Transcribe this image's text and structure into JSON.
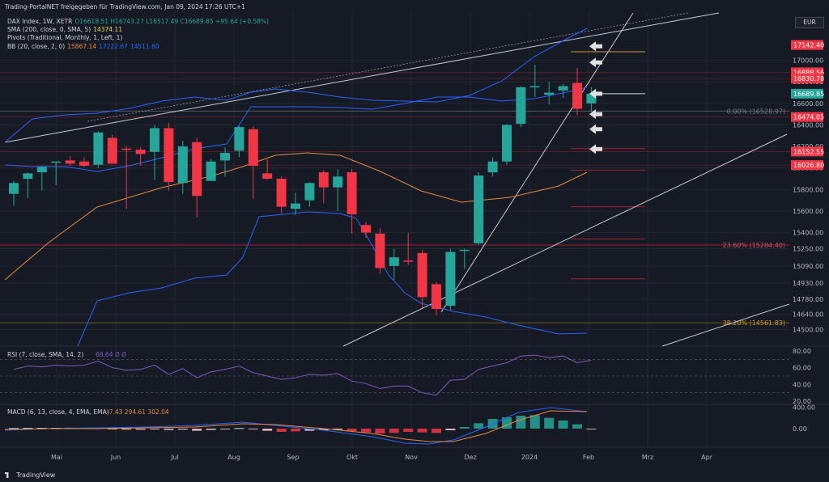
{
  "header": {
    "text": "Trading-PortalNET freigegeben für TradingView.com, Jan 09, 2024 17:26 UTC+1"
  },
  "legend": {
    "symbol": "DAX Index, 1W, XETR",
    "ohlc": "O16618.51  H16743.27  L16517.49  C16689.85  +95.64 (+0.58%)",
    "sma_label": "SMA (200, close, 0, SMA, 5)",
    "sma_value": "14374.11",
    "pivots_label": "Pivots (Traditional, Monthly, 1, Left, 1)",
    "bb_label": "BB (20, close, 2, 0)",
    "bb_v1": "15867.14",
    "bb_v2": "17222.67",
    "bb_v3": "14511.60"
  },
  "currency": "EUR",
  "footer": {
    "brand": "TradingView"
  },
  "colors": {
    "up": "#26a69a",
    "down": "#f23645",
    "bb": "#2962ff",
    "sma": "#e68a3c",
    "bg": "#161a25",
    "grid": "#232732",
    "pivot": "#a8202c",
    "fib": "#8c6a1a"
  },
  "chart_data": [
    {
      "type": "candlestick",
      "title": "DAX Index, 1W, XETR",
      "ylim": [
        14420,
        17260
      ],
      "price_ticks": [
        "17000.00",
        "16800.00",
        "16600.00",
        "16400.00",
        "16200.00",
        "16000.00",
        "15800.00",
        "15600.00",
        "15400.00",
        "15250.00",
        "15090.00",
        "14930.00",
        "14780.00",
        "14640.00",
        "14500.00"
      ],
      "time_labels": [
        "Mai",
        "Jun",
        "Jul",
        "Aug",
        "Sep",
        "Okt",
        "Nov",
        "Dez",
        "2024",
        "Feb",
        "Mrz",
        "Apr"
      ],
      "price_labels": [
        {
          "value": 17142.4,
          "text": "17142.40",
          "color": "#f23645"
        },
        {
          "value": 16888.56,
          "text": "16888.56",
          "color": "#f23645"
        },
        {
          "value": 16830.78,
          "text": "16830.78",
          "color": "#f23645"
        },
        {
          "value": 16689.85,
          "text": "16689.85",
          "color": "#26a69a"
        },
        {
          "value": 16474.05,
          "text": "16474.05",
          "color": "#f23645"
        },
        {
          "value": 16152.55,
          "text": "16152.55",
          "color": "#f23645"
        },
        {
          "value": 16026.8,
          "text": "16026.80",
          "color": "#f23645"
        }
      ],
      "fib_levels": [
        {
          "value": 16528.97,
          "text": "0.00% (16528.97)"
        },
        {
          "value": 15284.4,
          "text": "23.60% (15284.40)"
        },
        {
          "value": 14561.83,
          "text": "38.20% (14561.83)"
        }
      ],
      "candles": [
        {
          "o": 15760,
          "h": 15880,
          "l": 15650,
          "c": 15860
        },
        {
          "o": 15900,
          "h": 15960,
          "l": 15720,
          "c": 15950
        },
        {
          "o": 15960,
          "h": 16020,
          "l": 15790,
          "c": 16010
        },
        {
          "o": 16050,
          "h": 16060,
          "l": 15840,
          "c": 16060
        },
        {
          "o": 16070,
          "h": 16110,
          "l": 16020,
          "c": 16040
        },
        {
          "o": 16060,
          "h": 16100,
          "l": 16010,
          "c": 16020
        },
        {
          "o": 16030,
          "h": 16340,
          "l": 16000,
          "c": 16330
        },
        {
          "o": 16280,
          "h": 16310,
          "l": 16050,
          "c": 16040
        },
        {
          "o": 16180,
          "h": 16200,
          "l": 15620,
          "c": 16170
        },
        {
          "o": 16170,
          "h": 16190,
          "l": 16020,
          "c": 16130
        },
        {
          "o": 16150,
          "h": 16400,
          "l": 15890,
          "c": 16370
        },
        {
          "o": 16370,
          "h": 16420,
          "l": 15790,
          "c": 15870
        },
        {
          "o": 15860,
          "h": 16250,
          "l": 15760,
          "c": 16200
        },
        {
          "o": 16240,
          "h": 16280,
          "l": 15540,
          "c": 15740
        },
        {
          "o": 15880,
          "h": 16080,
          "l": 15890,
          "c": 16060
        },
        {
          "o": 16070,
          "h": 16190,
          "l": 15920,
          "c": 16140
        },
        {
          "o": 16160,
          "h": 16390,
          "l": 16100,
          "c": 16380
        },
        {
          "o": 16360,
          "h": 16390,
          "l": 15710,
          "c": 16020
        },
        {
          "o": 15950,
          "h": 16080,
          "l": 15890,
          "c": 15900
        },
        {
          "o": 15900,
          "h": 15920,
          "l": 15580,
          "c": 15640
        },
        {
          "o": 15620,
          "h": 15770,
          "l": 15560,
          "c": 15670
        },
        {
          "o": 15700,
          "h": 15870,
          "l": 15640,
          "c": 15860
        },
        {
          "o": 15960,
          "h": 15980,
          "l": 15670,
          "c": 15820
        },
        {
          "o": 15820,
          "h": 15990,
          "l": 15600,
          "c": 15920
        },
        {
          "o": 15960,
          "h": 15990,
          "l": 15390,
          "c": 15570
        },
        {
          "o": 15470,
          "h": 15500,
          "l": 15350,
          "c": 15400
        },
        {
          "o": 15390,
          "h": 15440,
          "l": 15020,
          "c": 15070
        },
        {
          "o": 15090,
          "h": 15250,
          "l": 14960,
          "c": 15170
        },
        {
          "o": 15140,
          "h": 15400,
          "l": 15100,
          "c": 15130
        },
        {
          "o": 15210,
          "h": 15240,
          "l": 14700,
          "c": 14800
        },
        {
          "o": 14920,
          "h": 14940,
          "l": 14630,
          "c": 14690
        },
        {
          "o": 14720,
          "h": 15250,
          "l": 14680,
          "c": 15220
        },
        {
          "o": 15240,
          "h": 15250,
          "l": 15060,
          "c": 15240
        },
        {
          "o": 15300,
          "h": 15960,
          "l": 15290,
          "c": 15930
        },
        {
          "o": 15960,
          "h": 16100,
          "l": 15920,
          "c": 16060
        },
        {
          "o": 16060,
          "h": 16410,
          "l": 16030,
          "c": 16400
        },
        {
          "o": 16410,
          "h": 16760,
          "l": 16380,
          "c": 16750
        },
        {
          "o": 16750,
          "h": 16960,
          "l": 16660,
          "c": 16760
        },
        {
          "o": 16680,
          "h": 16800,
          "l": 16590,
          "c": 16700
        },
        {
          "o": 16720,
          "h": 16780,
          "l": 16650,
          "c": 16760
        },
        {
          "o": 16790,
          "h": 16930,
          "l": 16490,
          "c": 16550
        },
        {
          "o": 16600,
          "h": 16750,
          "l": 16520,
          "c": 16690
        }
      ]
    },
    {
      "type": "line",
      "title": "RSI (7, close, SMA, 14, 2)",
      "values_text": "68.64  Ø  Ø",
      "ylim": [
        20,
        80
      ],
      "ticks": [
        "80.00",
        "60.00",
        "40.00",
        "20.00"
      ],
      "values": [
        58,
        62,
        61,
        63,
        62,
        63,
        68,
        60,
        57,
        58,
        63,
        52,
        59,
        48,
        55,
        58,
        62,
        54,
        50,
        46,
        48,
        52,
        51,
        53,
        44,
        41,
        35,
        38,
        38,
        30,
        27,
        45,
        46,
        58,
        62,
        66,
        74,
        75,
        72,
        74,
        66,
        69
      ]
    },
    {
      "type": "bar",
      "title": "MACD (6, 13, close, 4, EMA, EMA)",
      "values_text": "-7.43  294.61  302.04",
      "ylim": [
        -300,
        420
      ],
      "ticks": [
        "400.00",
        "0.00"
      ],
      "histogram": [
        10,
        12,
        14,
        15,
        16,
        14,
        12,
        -14,
        -18,
        -20,
        -15,
        -25,
        -20,
        -40,
        -25,
        -15,
        10,
        -15,
        -40,
        -60,
        -50,
        -40,
        -30,
        -20,
        -45,
        -70,
        -90,
        -80,
        -60,
        -70,
        -80,
        -30,
        30,
        100,
        180,
        210,
        240,
        250,
        200,
        150,
        80,
        -7
      ]
    }
  ]
}
